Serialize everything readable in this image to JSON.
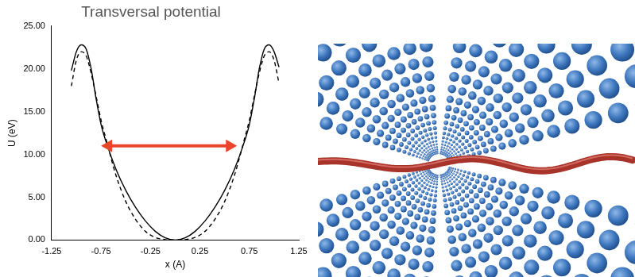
{
  "chart_data": {
    "type": "line",
    "title": "Transversal potential",
    "x_label": "x (A)",
    "y_label": "U (eV)",
    "x": [
      -1.05,
      -1.0,
      -0.95,
      -0.9,
      -0.85,
      -0.8,
      -0.75,
      -0.7,
      -0.6,
      -0.5,
      -0.4,
      -0.3,
      -0.2,
      -0.1,
      0,
      0.1,
      0.2,
      0.3,
      0.4,
      0.5,
      0.6,
      0.7,
      0.75,
      0.8,
      0.85,
      0.9,
      0.95,
      1.0,
      1.05
    ],
    "series": [
      {
        "color": "#000000",
        "line_style": "solid",
        "values": [
          19.8,
          22.0,
          22.8,
          22.3,
          20.0,
          16.5,
          13.5,
          11.5,
          8.3,
          5.8,
          3.8,
          2.2,
          1.0,
          0.25,
          0,
          0.25,
          1.0,
          2.2,
          3.8,
          5.8,
          8.3,
          11.5,
          13.5,
          16.5,
          20.0,
          22.3,
          22.8,
          22.0,
          20.2
        ]
      },
      {
        "color": "#000000",
        "line_style": "dashed",
        "values": [
          18.0,
          21.0,
          22.0,
          21.5,
          19.5,
          16.8,
          14.0,
          11.8,
          7.6,
          4.5,
          2.4,
          1.0,
          0.3,
          0.05,
          0,
          0.05,
          0.3,
          1.0,
          2.4,
          4.5,
          7.6,
          11.8,
          14.0,
          16.8,
          19.5,
          21.5,
          22.0,
          21.0,
          18.3
        ]
      }
    ],
    "xlim": [
      -1.25,
      1.25
    ],
    "xticks": [
      -1.25,
      -0.75,
      -0.25,
      0.25,
      0.75,
      1.25
    ],
    "ylim": [
      0,
      25
    ],
    "yticks": [
      {
        "value": 0,
        "label": "0.00"
      },
      {
        "value": 5,
        "label": "5.00"
      },
      {
        "value": 10,
        "label": "10.00"
      },
      {
        "value": 15,
        "label": "15.00"
      },
      {
        "value": 20,
        "label": "20.00"
      },
      {
        "value": 25,
        "label": "25.00"
      }
    ],
    "grid": false
  }
}
